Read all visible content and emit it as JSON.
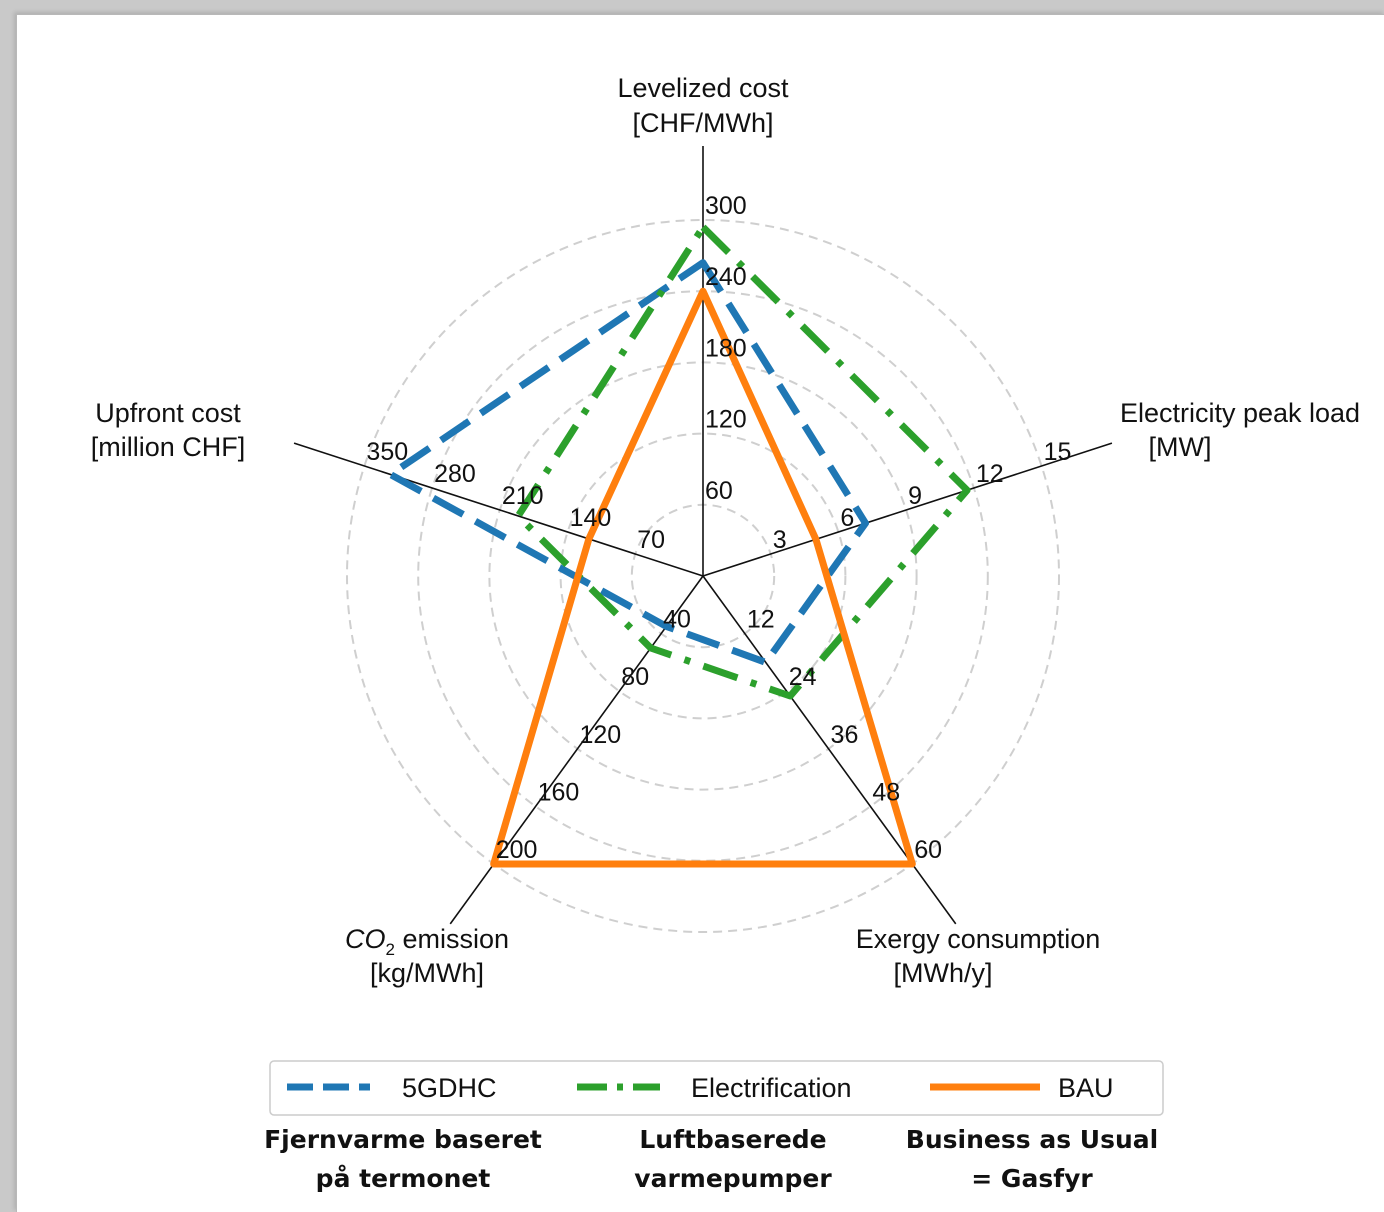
{
  "chart_data": {
    "type": "radar",
    "axes": [
      {
        "name": "Levelized cost",
        "unit": "[CHF/MWh]",
        "ticks": [
          "60",
          "120",
          "180",
          "240",
          "300"
        ],
        "max": 300
      },
      {
        "name": "Electricity peak load",
        "unit": "[MW]",
        "ticks": [
          "3",
          "6",
          "9",
          "12",
          "15"
        ],
        "max": 15
      },
      {
        "name": "Exergy consumption",
        "unit": "[MWh/y]",
        "ticks": [
          "12",
          "24",
          "36",
          "48",
          "60"
        ],
        "max": 60
      },
      {
        "name_html": "CO2 emission",
        "name_main": "CO",
        "name_sub": "2",
        "name_rest": " emission",
        "unit": "[kg/MWh]",
        "ticks": [
          "40",
          "80",
          "120",
          "160",
          "200"
        ],
        "max": 200
      },
      {
        "name": "Upfront cost",
        "unit": "[million CHF]",
        "ticks": [
          "70",
          "140",
          "210",
          "280",
          "350"
        ],
        "max": 350
      }
    ],
    "series": [
      {
        "name": "5GDHC",
        "color": "#1f77b4",
        "style": "dashed",
        "values": [
          264,
          7.2,
          18,
          35,
          323
        ]
      },
      {
        "name": "Electrification",
        "color": "#2ca02c",
        "style": "dashdot",
        "values": [
          294,
          11.7,
          25,
          50,
          191
        ]
      },
      {
        "name": "BAU",
        "color": "#ff7f0e",
        "style": "solid",
        "values": [
          240,
          5.0,
          60,
          200,
          118
        ]
      }
    ],
    "grid": true,
    "legend_position": "bottom"
  },
  "captions": [
    {
      "line1": "Fjernvarme baseret",
      "line2": "på termonet"
    },
    {
      "line1": "Luftbaserede",
      "line2": "varmepumper"
    },
    {
      "line1": "Business as Usual",
      "line2": "= Gasfyr"
    }
  ]
}
